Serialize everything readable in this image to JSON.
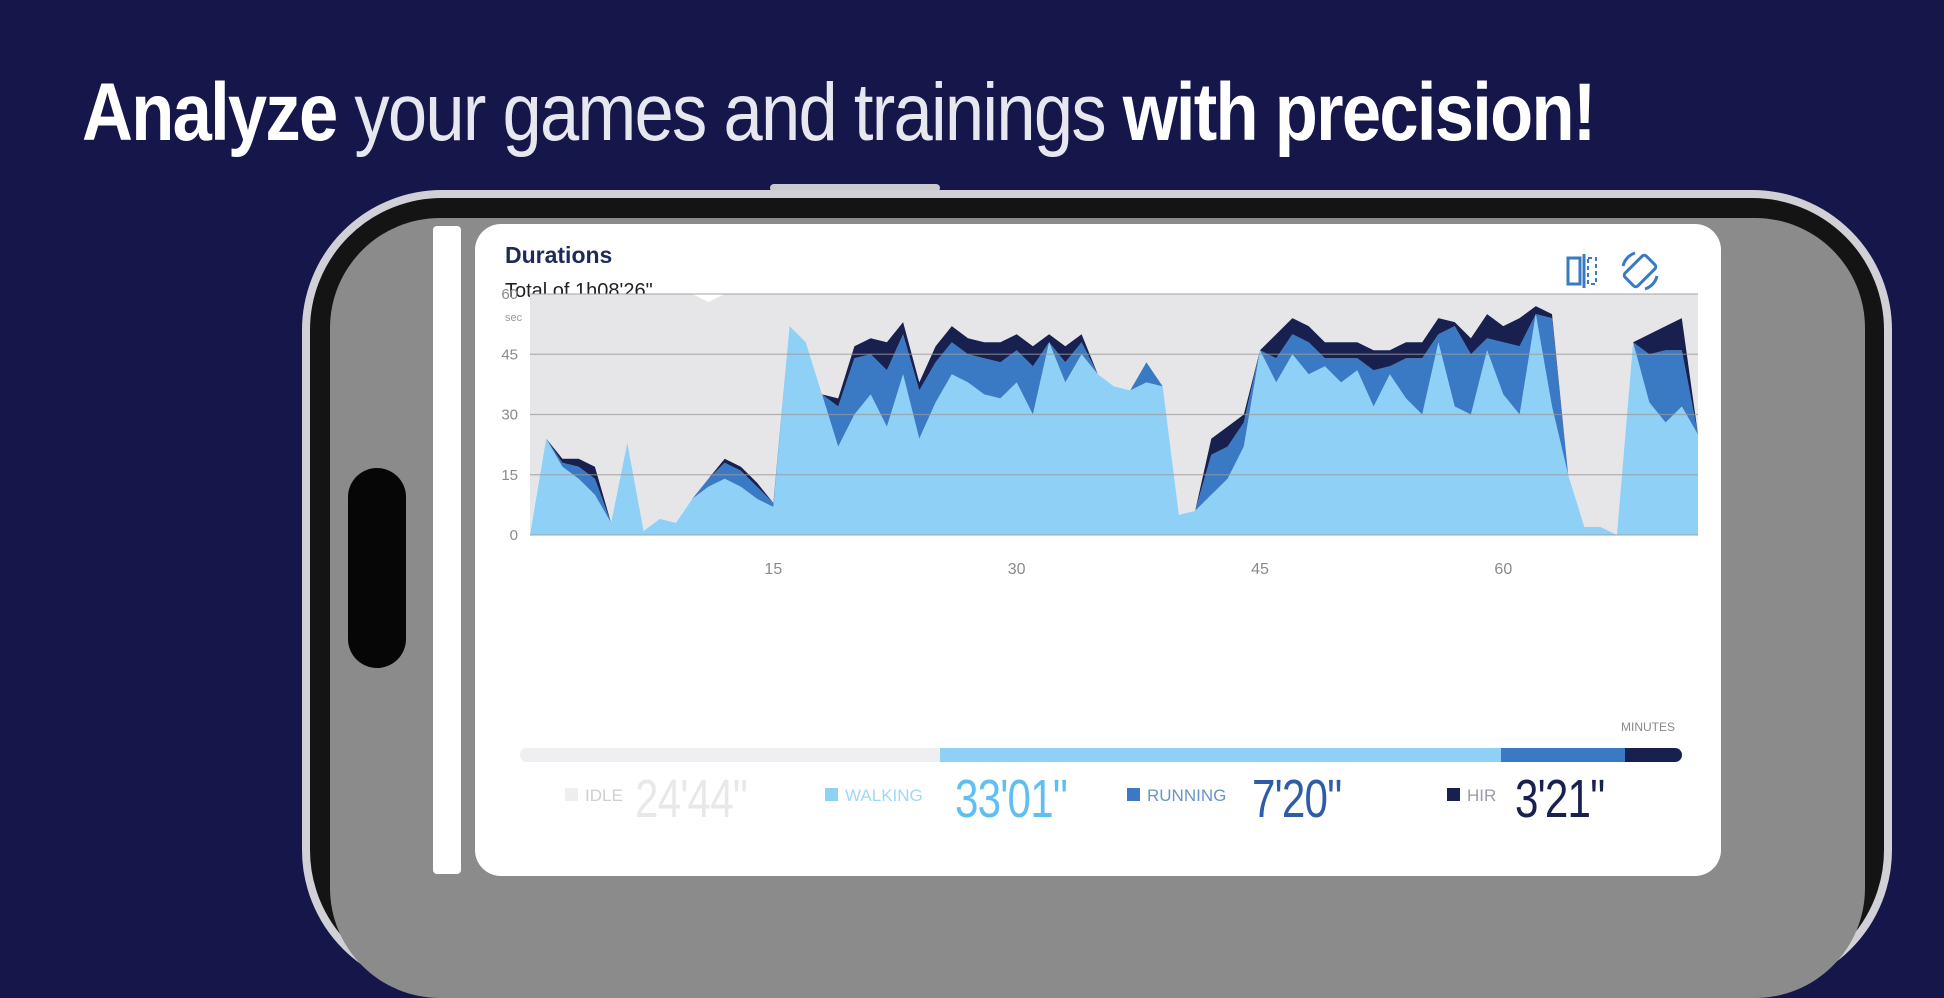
{
  "headline": {
    "word1": "Analyze",
    "middle": " your games and trainings ",
    "end": "with precision!"
  },
  "card": {
    "title": "Durations",
    "total": "Total of 1h08'26\"",
    "unit": "sec",
    "minutes_label": "MINUTES",
    "icons": [
      "compare-icon",
      "rotate-icon"
    ]
  },
  "colors": {
    "background": "#151649",
    "idle": "#e6e6e8",
    "walking": "#8fd0f6",
    "running": "#3a79c3",
    "hir": "#17204e",
    "gridline": "#9a9a9a"
  },
  "chart_data": {
    "type": "area",
    "stacked": true,
    "xlabel": "MINUTES",
    "ylabel": "sec",
    "xlim": [
      0,
      72
    ],
    "ylim": [
      0,
      60
    ],
    "x_ticks": [
      15,
      30,
      45,
      60
    ],
    "y_ticks": [
      0,
      15,
      30,
      45,
      60
    ],
    "grid": true,
    "x": [
      0,
      1,
      2,
      3,
      4,
      5,
      6,
      7,
      8,
      9,
      10,
      11,
      12,
      13,
      14,
      15,
      16,
      17,
      18,
      19,
      20,
      21,
      22,
      23,
      24,
      25,
      26,
      27,
      28,
      29,
      30,
      31,
      32,
      33,
      34,
      35,
      36,
      37,
      38,
      39,
      40,
      41,
      42,
      43,
      44,
      45,
      46,
      47,
      48,
      49,
      50,
      51,
      52,
      53,
      54,
      55,
      56,
      57,
      58,
      59,
      60,
      61,
      62,
      63,
      64,
      65,
      66,
      67,
      68,
      69,
      70,
      71,
      72
    ],
    "series": [
      {
        "name": "WALKING",
        "values": [
          0,
          24,
          17,
          14,
          10,
          3,
          23,
          1,
          4,
          3,
          9,
          12,
          14,
          12,
          9,
          7,
          52,
          48,
          35,
          22,
          30,
          35,
          27,
          40,
          24,
          33,
          40,
          38,
          35,
          34,
          38,
          30,
          48,
          38,
          45,
          40,
          37,
          36,
          38,
          37,
          5,
          6,
          10,
          14,
          22,
          46,
          38,
          45,
          40,
          42,
          38,
          41,
          32,
          40,
          34,
          30,
          48,
          32,
          30,
          46,
          35,
          30,
          55,
          32,
          15,
          2,
          2,
          0,
          48,
          33,
          28,
          32,
          25
        ]
      },
      {
        "name": "RUNNING",
        "values": [
          0,
          0,
          1,
          3,
          4,
          0,
          0,
          0,
          0,
          0,
          0,
          2,
          4,
          4,
          3,
          1,
          0,
          0,
          0,
          10,
          14,
          10,
          14,
          10,
          12,
          10,
          8,
          7,
          9,
          9,
          8,
          12,
          0,
          5,
          3,
          0,
          0,
          0,
          5,
          0,
          0,
          0,
          10,
          8,
          6,
          0,
          6,
          5,
          8,
          2,
          6,
          3,
          9,
          2,
          10,
          14,
          2,
          20,
          15,
          3,
          13,
          17,
          0,
          22,
          0,
          0,
          0,
          0,
          0,
          12,
          18,
          14,
          0
        ]
      },
      {
        "name": "HIR",
        "values": [
          0,
          0,
          1,
          2,
          3,
          0,
          0,
          0,
          0,
          0,
          0,
          0,
          1,
          1,
          1,
          0,
          0,
          0,
          0,
          2,
          3,
          4,
          7,
          3,
          2,
          4,
          4,
          4,
          4,
          5,
          4,
          5,
          2,
          4,
          2,
          0,
          0,
          0,
          0,
          0,
          0,
          0,
          4,
          5,
          2,
          0,
          6,
          4,
          4,
          4,
          4,
          4,
          5,
          4,
          4,
          4,
          4,
          1,
          4,
          6,
          4,
          7,
          2,
          1,
          0,
          0,
          0,
          0,
          0,
          5,
          6,
          8,
          0
        ]
      },
      {
        "name": "IDLE",
        "values": [
          60,
          36,
          41,
          41,
          43,
          57,
          37,
          59,
          56,
          57,
          51,
          44,
          41,
          43,
          47,
          52,
          8,
          12,
          25,
          26,
          13,
          11,
          12,
          7,
          22,
          13,
          8,
          11,
          12,
          12,
          10,
          13,
          10,
          13,
          10,
          20,
          23,
          24,
          17,
          23,
          55,
          54,
          36,
          33,
          30,
          14,
          10,
          6,
          8,
          12,
          12,
          12,
          14,
          14,
          12,
          12,
          6,
          7,
          11,
          5,
          8,
          6,
          3,
          5,
          45,
          58,
          58,
          60,
          12,
          10,
          8,
          6,
          35
        ]
      }
    ],
    "totals": [
      {
        "name": "IDLE",
        "value": "24'44\"",
        "seconds": 1484
      },
      {
        "name": "WALKING",
        "value": "33'01\"",
        "seconds": 1981
      },
      {
        "name": "RUNNING",
        "value": "7'20\"",
        "seconds": 440
      },
      {
        "name": "HIR",
        "value": "3'21\"",
        "seconds": 201
      }
    ]
  }
}
